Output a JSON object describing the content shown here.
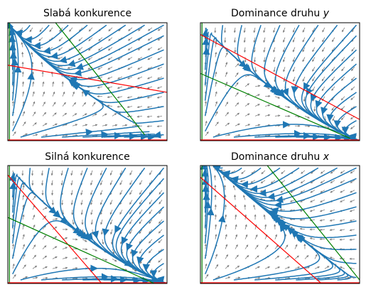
{
  "panels": [
    {
      "title_text": "Slabá konkurence ",
      "title_var": "",
      "nullcline_red": [
        [
          0,
          0.64
        ],
        [
          1,
          0.41
        ]
      ],
      "nullcline_green": [
        [
          0.3,
          1.0
        ],
        [
          0.86,
          0.05
        ]
      ]
    },
    {
      "title_text": "Dominance druhu ",
      "title_var": "y",
      "nullcline_red": [
        [
          0,
          0.9
        ],
        [
          1,
          0.18
        ]
      ],
      "nullcline_green": [
        [
          0,
          0.57
        ],
        [
          0.94,
          0.02
        ]
      ]
    },
    {
      "title_text": "Silná konkurence",
      "title_var": "",
      "nullcline_red": [
        [
          0,
          0.92
        ],
        [
          0.59,
          0.0
        ]
      ],
      "nullcline_green": [
        [
          0,
          0.56
        ],
        [
          0.92,
          0.0
        ]
      ]
    },
    {
      "title_text": "Dominance druhu ",
      "title_var": "x",
      "nullcline_red": [
        [
          0,
          0.9
        ],
        [
          0.76,
          0.0
        ]
      ],
      "nullcline_green": [
        [
          0.42,
          1.0
        ],
        [
          1,
          0.03
        ]
      ]
    }
  ],
  "colors": {
    "streamline": "#1f77b4",
    "quiver": "#808080",
    "nullcline_x": "#ff0000",
    "nullcline_y": "#008000",
    "frame": "#000000"
  }
}
